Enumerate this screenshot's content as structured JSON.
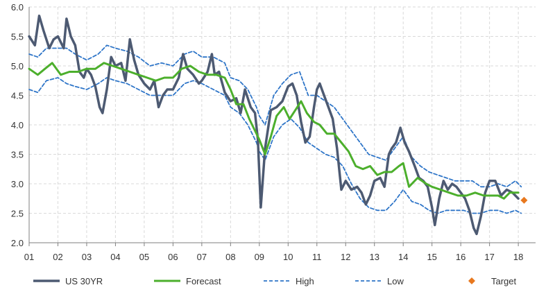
{
  "chart_data": {
    "type": "line",
    "title": "",
    "xlabel": "",
    "ylabel": "",
    "ylim": [
      2.0,
      6.0
    ],
    "xlim": [
      2001.0,
      2018.6
    ],
    "grid": true,
    "legend_position": "bottom",
    "y_ticks": [
      "2.0",
      "2.5",
      "3.0",
      "3.5",
      "4.0",
      "4.5",
      "5.0",
      "5.5",
      "6.0"
    ],
    "x_ticks": [
      "01",
      "02",
      "03",
      "04",
      "05",
      "06",
      "07",
      "08",
      "09",
      "10",
      "11",
      "12",
      "13",
      "14",
      "15",
      "16",
      "17",
      "18"
    ],
    "series": [
      {
        "name": "US 30YR",
        "color": "#4d5a72",
        "style": "solid-thick",
        "x": [
          2001.0,
          2001.2,
          2001.35,
          2001.5,
          2001.7,
          2001.85,
          2002.0,
          2002.2,
          2002.3,
          2002.45,
          2002.6,
          2002.75,
          2002.9,
          2003.0,
          2003.15,
          2003.3,
          2003.45,
          2003.55,
          2003.7,
          2003.85,
          2004.0,
          2004.2,
          2004.35,
          2004.5,
          2004.65,
          2004.8,
          2005.0,
          2005.2,
          2005.35,
          2005.5,
          2005.65,
          2005.8,
          2006.0,
          2006.2,
          2006.35,
          2006.5,
          2006.7,
          2006.9,
          2007.0,
          2007.2,
          2007.35,
          2007.45,
          2007.6,
          2007.8,
          2008.0,
          2008.2,
          2008.35,
          2008.5,
          2008.7,
          2008.85,
          2008.95,
          2009.05,
          2009.2,
          2009.4,
          2009.6,
          2009.8,
          2010.0,
          2010.15,
          2010.3,
          2010.45,
          2010.6,
          2010.75,
          2010.9,
          2011.0,
          2011.1,
          2011.25,
          2011.4,
          2011.55,
          2011.7,
          2011.85,
          2012.0,
          2012.2,
          2012.4,
          2012.55,
          2012.7,
          2012.85,
          2013.0,
          2013.2,
          2013.35,
          2013.5,
          2013.6,
          2013.75,
          2013.9,
          2014.05,
          2014.2,
          2014.4,
          2014.55,
          2014.7,
          2014.85,
          2015.0,
          2015.1,
          2015.25,
          2015.4,
          2015.55,
          2015.7,
          2015.85,
          2016.0,
          2016.15,
          2016.3,
          2016.45,
          2016.55,
          2016.7,
          2016.85,
          2017.0,
          2017.2,
          2017.4,
          2017.6,
          2017.8,
          2018.0
        ],
        "y": [
          5.5,
          5.35,
          5.85,
          5.6,
          5.3,
          5.45,
          5.5,
          5.3,
          5.8,
          5.5,
          5.35,
          4.9,
          4.8,
          4.95,
          4.85,
          4.65,
          4.3,
          4.2,
          4.6,
          5.15,
          5.0,
          5.05,
          4.75,
          5.45,
          5.1,
          4.85,
          4.7,
          4.6,
          4.75,
          4.3,
          4.5,
          4.6,
          4.6,
          4.8,
          5.2,
          4.95,
          4.85,
          4.7,
          4.75,
          4.9,
          5.2,
          4.85,
          4.9,
          4.55,
          4.4,
          4.45,
          4.2,
          4.6,
          4.3,
          4.2,
          3.75,
          2.6,
          3.6,
          4.25,
          4.3,
          4.4,
          4.65,
          4.7,
          4.5,
          4.05,
          3.7,
          3.8,
          4.3,
          4.6,
          4.7,
          4.5,
          4.3,
          4.1,
          3.6,
          2.9,
          3.05,
          2.9,
          2.95,
          2.85,
          2.65,
          2.8,
          3.05,
          3.1,
          2.95,
          3.5,
          3.6,
          3.7,
          3.95,
          3.7,
          3.55,
          3.3,
          3.1,
          3.05,
          2.95,
          2.6,
          2.3,
          2.75,
          3.05,
          2.9,
          3.0,
          2.95,
          2.85,
          2.75,
          2.55,
          2.25,
          2.15,
          2.45,
          2.85,
          3.05,
          3.05,
          2.8,
          2.9,
          2.85,
          2.75
        ]
      },
      {
        "name": "Forecast",
        "color": "#4caf2c",
        "style": "solid",
        "x": [
          2001.0,
          2001.3,
          2001.55,
          2001.8,
          2002.1,
          2002.4,
          2002.7,
          2003.0,
          2003.3,
          2003.6,
          2003.9,
          2004.2,
          2004.5,
          2004.8,
          2005.1,
          2005.4,
          2005.7,
          2006.0,
          2006.3,
          2006.6,
          2006.9,
          2007.2,
          2007.5,
          2007.8,
          2008.0,
          2008.2,
          2008.45,
          2008.65,
          2008.85,
          2009.0,
          2009.2,
          2009.4,
          2009.6,
          2009.85,
          2010.05,
          2010.25,
          2010.45,
          2010.65,
          2010.9,
          2011.1,
          2011.35,
          2011.6,
          2011.85,
          2012.1,
          2012.35,
          2012.6,
          2012.85,
          2013.1,
          2013.35,
          2013.6,
          2013.85,
          2014.0,
          2014.2,
          2014.5,
          2014.8,
          2015.0,
          2015.3,
          2015.6,
          2015.9,
          2016.2,
          2016.5,
          2016.8,
          2017.0,
          2017.3,
          2017.5,
          2017.7,
          2018.0
        ],
        "y": [
          4.95,
          4.85,
          4.95,
          5.05,
          4.85,
          4.9,
          4.9,
          4.95,
          4.95,
          5.05,
          5.0,
          4.95,
          4.9,
          4.85,
          4.8,
          4.75,
          4.8,
          4.8,
          4.95,
          5.0,
          4.9,
          4.85,
          4.85,
          4.8,
          4.6,
          4.35,
          4.35,
          4.1,
          3.9,
          3.75,
          3.5,
          3.8,
          4.15,
          4.3,
          4.1,
          4.25,
          4.4,
          4.2,
          4.05,
          4.0,
          3.85,
          3.85,
          3.7,
          3.55,
          3.3,
          3.25,
          3.3,
          3.15,
          3.2,
          3.2,
          3.3,
          3.35,
          2.95,
          3.1,
          3.0,
          2.95,
          2.9,
          2.85,
          2.8,
          2.8,
          2.85,
          2.8,
          2.8,
          2.8,
          2.75,
          2.85,
          2.85
        ]
      },
      {
        "name": "High",
        "color": "#2e75c8",
        "style": "dashed",
        "x": [
          2001.0,
          2001.3,
          2001.6,
          2002.0,
          2002.3,
          2002.6,
          2003.0,
          2003.4,
          2003.7,
          2004.0,
          2004.4,
          2004.8,
          2005.2,
          2005.6,
          2006.0,
          2006.4,
          2006.7,
          2007.0,
          2007.4,
          2007.8,
          2008.0,
          2008.3,
          2008.6,
          2008.9,
          2009.0,
          2009.2,
          2009.5,
          2009.8,
          2010.1,
          2010.4,
          2010.7,
          2011.0,
          2011.3,
          2011.6,
          2011.9,
          2012.2,
          2012.5,
          2012.8,
          2013.1,
          2013.4,
          2013.7,
          2014.0,
          2014.3,
          2014.6,
          2014.9,
          2015.2,
          2015.5,
          2015.8,
          2016.1,
          2016.4,
          2016.7,
          2017.0,
          2017.3,
          2017.6,
          2017.9,
          2018.1
        ],
        "y": [
          5.2,
          5.15,
          5.3,
          5.3,
          5.3,
          5.2,
          5.1,
          5.2,
          5.35,
          5.3,
          5.25,
          5.15,
          5.0,
          5.05,
          5.0,
          5.2,
          5.25,
          5.15,
          5.15,
          5.05,
          4.8,
          4.75,
          4.6,
          4.3,
          4.15,
          4.0,
          4.5,
          4.7,
          4.85,
          4.9,
          4.5,
          4.5,
          4.4,
          4.3,
          4.1,
          3.9,
          3.7,
          3.5,
          3.45,
          3.4,
          3.6,
          3.8,
          3.45,
          3.3,
          3.2,
          3.15,
          3.1,
          3.05,
          3.05,
          3.05,
          2.95,
          2.95,
          3.0,
          2.95,
          3.05,
          2.95
        ]
      },
      {
        "name": "Low",
        "color": "#2e75c8",
        "style": "dashed",
        "x": [
          2001.0,
          2001.3,
          2001.6,
          2002.0,
          2002.3,
          2002.6,
          2003.0,
          2003.4,
          2003.7,
          2004.0,
          2004.4,
          2004.8,
          2005.2,
          2005.6,
          2006.0,
          2006.4,
          2006.7,
          2007.0,
          2007.4,
          2007.8,
          2008.0,
          2008.3,
          2008.6,
          2008.9,
          2009.0,
          2009.2,
          2009.5,
          2009.8,
          2010.1,
          2010.4,
          2010.7,
          2011.0,
          2011.3,
          2011.6,
          2011.9,
          2012.2,
          2012.5,
          2012.8,
          2013.1,
          2013.4,
          2013.7,
          2014.0,
          2014.3,
          2014.6,
          2014.9,
          2015.2,
          2015.5,
          2015.8,
          2016.1,
          2016.4,
          2016.7,
          2017.0,
          2017.3,
          2017.6,
          2017.9,
          2018.1
        ],
        "y": [
          4.6,
          4.55,
          4.75,
          4.8,
          4.7,
          4.65,
          4.6,
          4.7,
          4.8,
          4.75,
          4.7,
          4.6,
          4.5,
          4.5,
          4.5,
          4.7,
          4.75,
          4.7,
          4.6,
          4.5,
          4.3,
          4.2,
          4.0,
          3.7,
          3.55,
          3.4,
          3.8,
          4.0,
          4.1,
          3.95,
          3.7,
          3.6,
          3.5,
          3.45,
          3.3,
          3.0,
          2.75,
          2.6,
          2.55,
          2.55,
          2.7,
          2.9,
          2.7,
          2.65,
          2.55,
          2.5,
          2.55,
          2.55,
          2.55,
          2.5,
          2.5,
          2.55,
          2.55,
          2.5,
          2.55,
          2.5
        ]
      }
    ],
    "target": {
      "name": "Target",
      "color": "#e8781e",
      "x": 2018.2,
      "y": 2.72
    }
  }
}
